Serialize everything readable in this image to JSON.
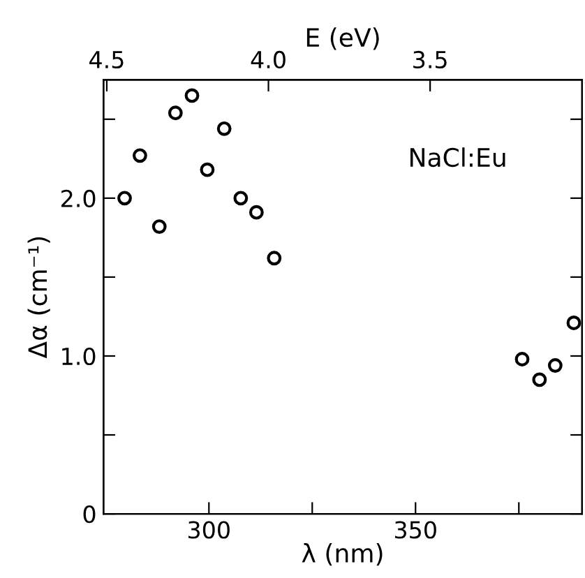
{
  "chart_data": {
    "type": "scatter",
    "xlabel": "λ (nm)",
    "ylabel": "Δα (cm⁻¹)",
    "x2label": "E (eV)",
    "annotations": [
      "NaCl:Eu"
    ],
    "x": [
      279.6,
      283.3,
      288.0,
      291.9,
      295.9,
      299.6,
      303.7,
      307.7,
      311.5,
      315.8,
      375.8,
      380.0,
      383.8,
      388.3
    ],
    "series": [
      {
        "color": "#000000",
        "values": [
          2.0,
          2.27,
          1.82,
          2.54,
          2.65,
          2.18,
          2.44,
          2.0,
          1.91,
          1.62,
          0.98,
          0.85,
          0.94,
          1.21
        ]
      }
    ],
    "marker": "circle",
    "xlim": [
      274.5,
      390.3
    ],
    "xticks": [
      300,
      {
        "value": 325,
        "label": null
      },
      350,
      {
        "value": 375,
        "label": null
      }
    ],
    "x2lim": [
      4.51,
      3.03
    ],
    "x2ticks": [
      4.5,
      {
        "value": 4,
        "label": "4.0"
      },
      3.5
    ],
    "ylim": [
      0,
      2.75
    ],
    "yticks": [
      0,
      {
        "value": 0.5,
        "label": null
      },
      {
        "value": 1,
        "label": "1.0"
      },
      {
        "value": 1.5,
        "label": null
      },
      {
        "value": 2,
        "label": "2.0"
      },
      {
        "value": 2.5,
        "label": null
      }
    ],
    "grid": false,
    "legend": false
  }
}
